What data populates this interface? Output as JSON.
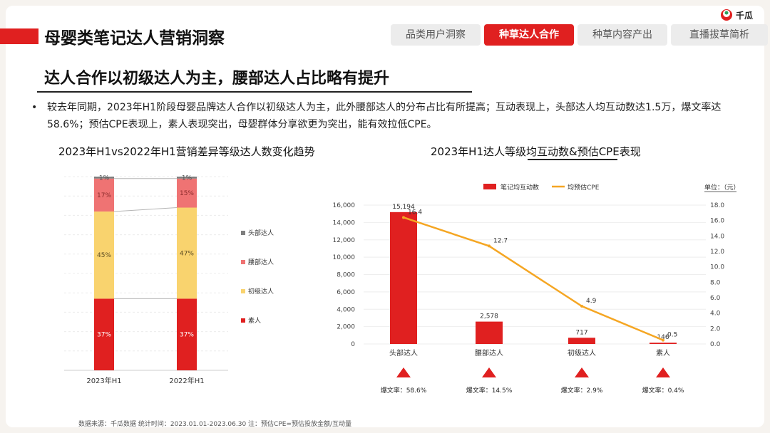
{
  "header": {
    "title": "母婴类笔记达人营销洞察",
    "tabs": [
      "品类用户洞察",
      "种草达人合作",
      "种草内容产出",
      "直播拔草简析"
    ],
    "active_tab": 1,
    "logo_text": "千瓜"
  },
  "subtitle": "达人合作以初级达人为主，腰部达人占比略有提升",
  "bullet": "较去年同期，2023年H1阶段母婴品牌达人合作以初级达人为主，此外腰部达人的分布占比有所提高；互动表现上，头部达人均互动数达1.5万，爆文率达58.6%；预估CPE表现上，素人表现突出，母婴群体分享欲更为突出，能有效拉低CPE。",
  "footer_text": "数据来源：千瓜数据   统计时间：2023.01.01-2023.06.30   注：预估CPE=预估投放金额/互动量",
  "colors": {
    "accent": "#e02020",
    "head": "#7f7f7f",
    "waist": "#ef7373",
    "junior": "#f9d36e",
    "amateur": "#e02020",
    "line": "#f5a623"
  },
  "chart_data": [
    {
      "type": "bar",
      "stacked": true,
      "percent": true,
      "title": "2023年H1vs2022年H1营销差异等级达人数变化趋势",
      "categories": [
        "2023年H1",
        "2022年H1"
      ],
      "series": [
        {
          "name": "素人",
          "values": [
            37,
            37
          ],
          "labels": [
            "37%",
            "37%"
          ]
        },
        {
          "name": "初级达人",
          "values": [
            45,
            47
          ],
          "labels": [
            "45%",
            "47%"
          ]
        },
        {
          "name": "腰部达人",
          "values": [
            17,
            15
          ],
          "labels": [
            "17%",
            "15%"
          ]
        },
        {
          "name": "头部达人",
          "values": [
            1,
            1
          ],
          "labels": [
            "1%",
            "1%"
          ]
        }
      ],
      "legend": [
        "头部达人",
        "腰部达人",
        "初级达人",
        "素人"
      ],
      "legend_position": "right",
      "ylim": [
        0,
        100
      ]
    },
    {
      "type": "bar",
      "combo": "bar+line",
      "title_parts": [
        "2023年H1达人等级",
        "均互动数&预估CPE",
        "表现"
      ],
      "unit_label": "单位：（元）",
      "categories": [
        "头部达人",
        "腰部达人",
        "初级达人",
        "素人"
      ],
      "series": [
        {
          "name": "笔记均互动数",
          "type": "bar",
          "axis": "left",
          "values": [
            15194,
            2578,
            717,
            146
          ],
          "labels": [
            "15,194",
            "2,578",
            "717",
            "146"
          ]
        },
        {
          "name": "均预估CPE",
          "type": "line",
          "axis": "right",
          "values": [
            16.4,
            12.7,
            4.9,
            0.5
          ],
          "labels": [
            "16.4",
            "12.7",
            "4.9",
            "0.5"
          ]
        }
      ],
      "left_ylim": [
        0,
        16000
      ],
      "left_ticks": [
        "0",
        "2,000",
        "4,000",
        "6,000",
        "8,000",
        "10,000",
        "12,000",
        "14,000",
        "16,000"
      ],
      "right_ylim": [
        0,
        18
      ],
      "right_ticks": [
        "0.0",
        "2.0",
        "4.0",
        "6.0",
        "8.0",
        "10.0",
        "12.0",
        "14.0",
        "16.0",
        "18.0"
      ],
      "viral_rates": [
        "爆文率：58.6%",
        "爆文率：14.5%",
        "爆文率：2.9%",
        "爆文率：0.4%"
      ],
      "legend_position": "top"
    }
  ]
}
